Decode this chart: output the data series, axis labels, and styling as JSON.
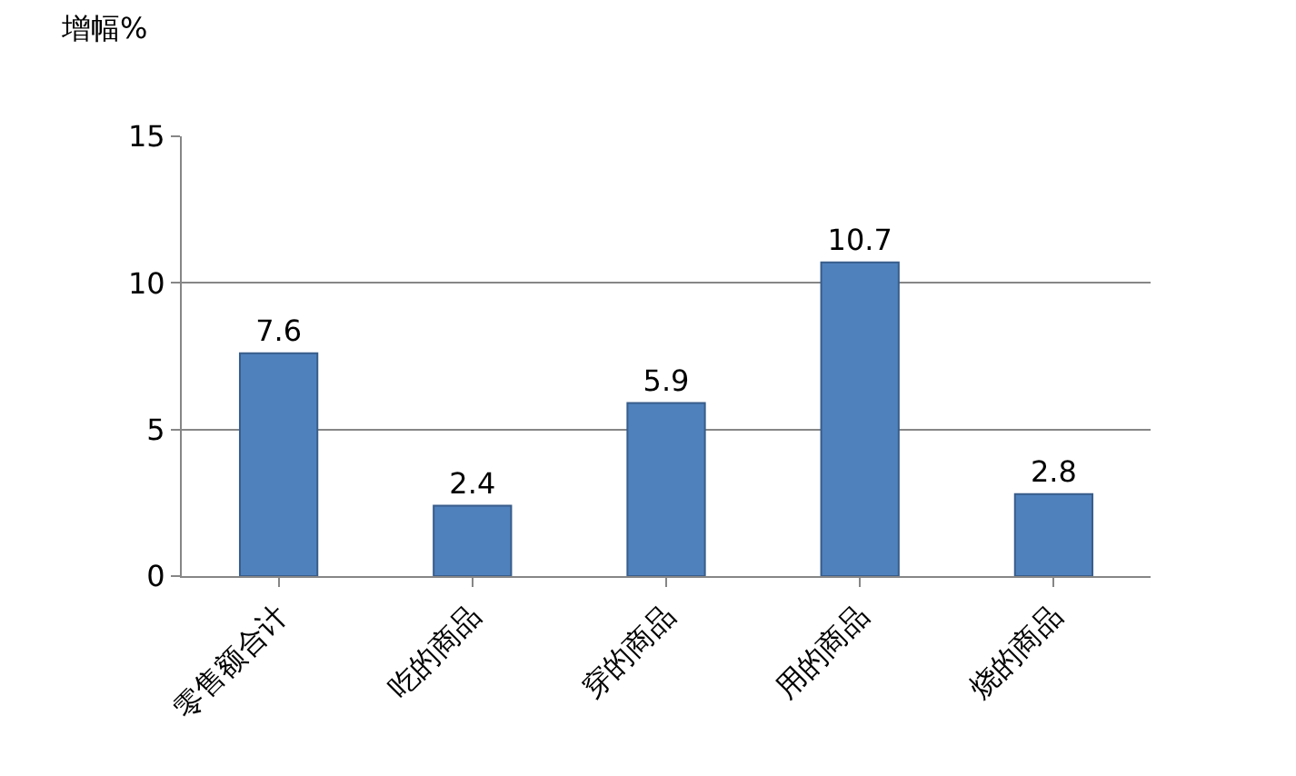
{
  "chart_data": {
    "type": "bar",
    "ylabel": "增幅%",
    "categories": [
      "零售额合计",
      "吃的商品",
      "穿的商品",
      "用的商品",
      "烧的商品"
    ],
    "values": [
      7.6,
      2.4,
      5.9,
      10.7,
      2.8
    ],
    "color": "#4f81bd",
    "ylim": [
      0,
      15
    ],
    "yticks": [
      0,
      5,
      10,
      15
    ],
    "grid": "y",
    "data_labels": true
  }
}
